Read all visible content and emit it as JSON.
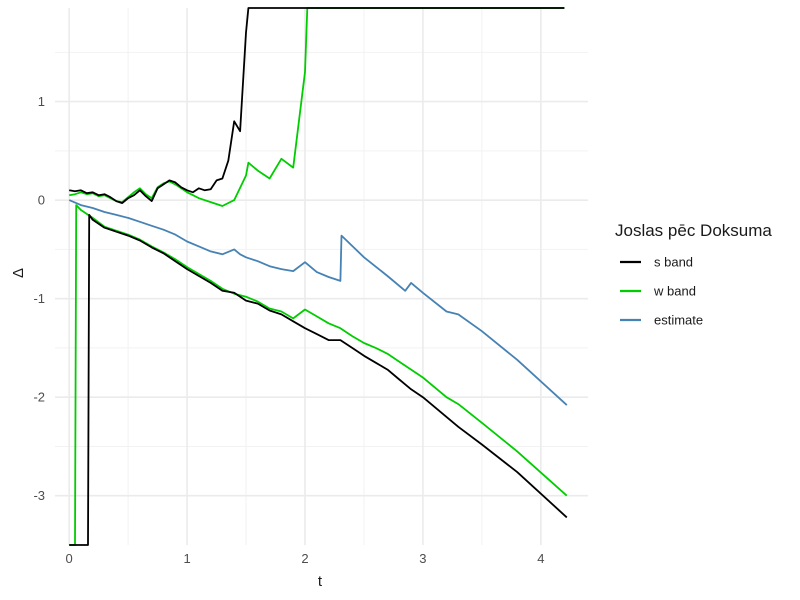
{
  "chart_data": {
    "type": "line",
    "xlabel": "t",
    "ylabel": "Δ",
    "xlim": [
      -0.12,
      4.4
    ],
    "ylim": [
      -3.5,
      1.95
    ],
    "x_ticks": [
      0,
      1,
      2,
      3,
      4
    ],
    "x_tick_labels": [
      "0",
      "1",
      "2",
      "3",
      "4"
    ],
    "y_ticks": [
      -3,
      -2,
      -1,
      0,
      1
    ],
    "y_tick_labels": [
      "-3",
      "-2",
      "-1",
      "0",
      "1"
    ],
    "grid": true,
    "legend": {
      "title": "Joslas pēc Doksuma",
      "position": "right"
    },
    "series": [
      {
        "name": "s band",
        "color": "#000000",
        "upper": [
          [
            0.0,
            0.1
          ],
          [
            0.05,
            0.09
          ],
          [
            0.1,
            0.1
          ],
          [
            0.15,
            0.07
          ],
          [
            0.2,
            0.08
          ],
          [
            0.25,
            0.05
          ],
          [
            0.3,
            0.06
          ],
          [
            0.35,
            0.03
          ],
          [
            0.4,
            -0.01
          ],
          [
            0.45,
            -0.03
          ],
          [
            0.5,
            0.02
          ],
          [
            0.55,
            0.05
          ],
          [
            0.6,
            0.1
          ],
          [
            0.65,
            0.04
          ],
          [
            0.7,
            -0.01
          ],
          [
            0.75,
            0.12
          ],
          [
            0.8,
            0.16
          ],
          [
            0.85,
            0.2
          ],
          [
            0.9,
            0.18
          ],
          [
            0.95,
            0.13
          ],
          [
            1.0,
            0.1
          ],
          [
            1.05,
            0.08
          ],
          [
            1.1,
            0.12
          ],
          [
            1.15,
            0.1
          ],
          [
            1.2,
            0.11
          ],
          [
            1.25,
            0.2
          ],
          [
            1.3,
            0.22
          ],
          [
            1.35,
            0.4
          ],
          [
            1.4,
            0.8
          ],
          [
            1.45,
            0.7
          ],
          [
            1.5,
            1.7
          ],
          [
            1.52,
            1.95
          ],
          [
            1.6,
            1.95
          ],
          [
            2.0,
            1.95
          ],
          [
            3.0,
            1.95
          ],
          [
            4.2,
            1.95
          ]
        ],
        "lower": [
          [
            0.0,
            -3.5
          ],
          [
            0.16,
            -3.5
          ],
          [
            0.17,
            -0.15
          ],
          [
            0.2,
            -0.2
          ],
          [
            0.3,
            -0.28
          ],
          [
            0.4,
            -0.32
          ],
          [
            0.5,
            -0.36
          ],
          [
            0.6,
            -0.41
          ],
          [
            0.7,
            -0.48
          ],
          [
            0.8,
            -0.54
          ],
          [
            0.9,
            -0.62
          ],
          [
            1.0,
            -0.7
          ],
          [
            1.1,
            -0.77
          ],
          [
            1.2,
            -0.84
          ],
          [
            1.3,
            -0.92
          ],
          [
            1.4,
            -0.94
          ],
          [
            1.5,
            -1.02
          ],
          [
            1.6,
            -1.05
          ],
          [
            1.7,
            -1.12
          ],
          [
            1.8,
            -1.16
          ],
          [
            1.9,
            -1.23
          ],
          [
            2.0,
            -1.3
          ],
          [
            2.1,
            -1.36
          ],
          [
            2.2,
            -1.42
          ],
          [
            2.3,
            -1.42
          ],
          [
            2.4,
            -1.5
          ],
          [
            2.5,
            -1.58
          ],
          [
            2.6,
            -1.65
          ],
          [
            2.7,
            -1.72
          ],
          [
            2.8,
            -1.82
          ],
          [
            2.9,
            -1.92
          ],
          [
            3.0,
            -2.0
          ],
          [
            3.2,
            -2.2
          ],
          [
            3.3,
            -2.3
          ],
          [
            3.5,
            -2.48
          ],
          [
            3.8,
            -2.76
          ],
          [
            4.22,
            -3.22
          ]
        ]
      },
      {
        "name": "w band",
        "color": "#00cd00",
        "upper": [
          [
            0.0,
            0.05
          ],
          [
            0.05,
            0.06
          ],
          [
            0.1,
            0.08
          ],
          [
            0.15,
            0.06
          ],
          [
            0.2,
            0.07
          ],
          [
            0.25,
            0.04
          ],
          [
            0.3,
            0.05
          ],
          [
            0.35,
            0.02
          ],
          [
            0.4,
            -0.01
          ],
          [
            0.45,
            -0.02
          ],
          [
            0.5,
            0.03
          ],
          [
            0.55,
            0.08
          ],
          [
            0.6,
            0.12
          ],
          [
            0.65,
            0.06
          ],
          [
            0.7,
            0.02
          ],
          [
            0.75,
            0.13
          ],
          [
            0.8,
            0.17
          ],
          [
            0.85,
            0.19
          ],
          [
            0.9,
            0.16
          ],
          [
            0.95,
            0.12
          ],
          [
            1.0,
            0.08
          ],
          [
            1.05,
            0.05
          ],
          [
            1.1,
            0.02
          ],
          [
            1.2,
            -0.02
          ],
          [
            1.3,
            -0.06
          ],
          [
            1.4,
            0.0
          ],
          [
            1.5,
            0.25
          ],
          [
            1.52,
            0.38
          ],
          [
            1.6,
            0.3
          ],
          [
            1.7,
            0.22
          ],
          [
            1.8,
            0.42
          ],
          [
            1.9,
            0.33
          ],
          [
            2.0,
            1.3
          ],
          [
            2.02,
            1.95
          ],
          [
            2.5,
            1.95
          ],
          [
            3.0,
            1.95
          ],
          [
            4.2,
            1.95
          ]
        ],
        "lower": [
          [
            0.0,
            -3.5
          ],
          [
            0.05,
            -3.5
          ],
          [
            0.06,
            -0.05
          ],
          [
            0.1,
            -0.1
          ],
          [
            0.2,
            -0.18
          ],
          [
            0.3,
            -0.27
          ],
          [
            0.4,
            -0.31
          ],
          [
            0.5,
            -0.35
          ],
          [
            0.6,
            -0.4
          ],
          [
            0.7,
            -0.47
          ],
          [
            0.8,
            -0.53
          ],
          [
            0.9,
            -0.6
          ],
          [
            1.0,
            -0.68
          ],
          [
            1.1,
            -0.75
          ],
          [
            1.2,
            -0.82
          ],
          [
            1.3,
            -0.9
          ],
          [
            1.4,
            -0.95
          ],
          [
            1.5,
            -0.98
          ],
          [
            1.6,
            -1.03
          ],
          [
            1.7,
            -1.1
          ],
          [
            1.8,
            -1.13
          ],
          [
            1.9,
            -1.2
          ],
          [
            2.0,
            -1.11
          ],
          [
            2.1,
            -1.18
          ],
          [
            2.2,
            -1.25
          ],
          [
            2.3,
            -1.3
          ],
          [
            2.4,
            -1.38
          ],
          [
            2.5,
            -1.45
          ],
          [
            2.6,
            -1.5
          ],
          [
            2.7,
            -1.56
          ],
          [
            2.8,
            -1.64
          ],
          [
            2.9,
            -1.72
          ],
          [
            3.0,
            -1.8
          ],
          [
            3.2,
            -2.0
          ],
          [
            3.3,
            -2.07
          ],
          [
            3.5,
            -2.26
          ],
          [
            3.8,
            -2.55
          ],
          [
            4.22,
            -3.0
          ]
        ]
      },
      {
        "name": "estimate",
        "color": "#4682b4",
        "values": [
          [
            0.0,
            0.0
          ],
          [
            0.1,
            -0.05
          ],
          [
            0.2,
            -0.08
          ],
          [
            0.3,
            -0.12
          ],
          [
            0.4,
            -0.15
          ],
          [
            0.5,
            -0.18
          ],
          [
            0.6,
            -0.22
          ],
          [
            0.7,
            -0.26
          ],
          [
            0.8,
            -0.3
          ],
          [
            0.9,
            -0.35
          ],
          [
            1.0,
            -0.42
          ],
          [
            1.1,
            -0.47
          ],
          [
            1.2,
            -0.52
          ],
          [
            1.3,
            -0.55
          ],
          [
            1.4,
            -0.5
          ],
          [
            1.45,
            -0.55
          ],
          [
            1.5,
            -0.58
          ],
          [
            1.6,
            -0.62
          ],
          [
            1.7,
            -0.67
          ],
          [
            1.8,
            -0.7
          ],
          [
            1.9,
            -0.72
          ],
          [
            2.0,
            -0.63
          ],
          [
            2.1,
            -0.73
          ],
          [
            2.2,
            -0.78
          ],
          [
            2.3,
            -0.82
          ],
          [
            2.31,
            -0.36
          ],
          [
            2.5,
            -0.58
          ],
          [
            2.7,
            -0.77
          ],
          [
            2.85,
            -0.92
          ],
          [
            2.9,
            -0.84
          ],
          [
            3.0,
            -0.94
          ],
          [
            3.2,
            -1.13
          ],
          [
            3.3,
            -1.16
          ],
          [
            3.5,
            -1.33
          ],
          [
            3.8,
            -1.62
          ],
          [
            4.22,
            -2.08
          ]
        ]
      }
    ]
  }
}
